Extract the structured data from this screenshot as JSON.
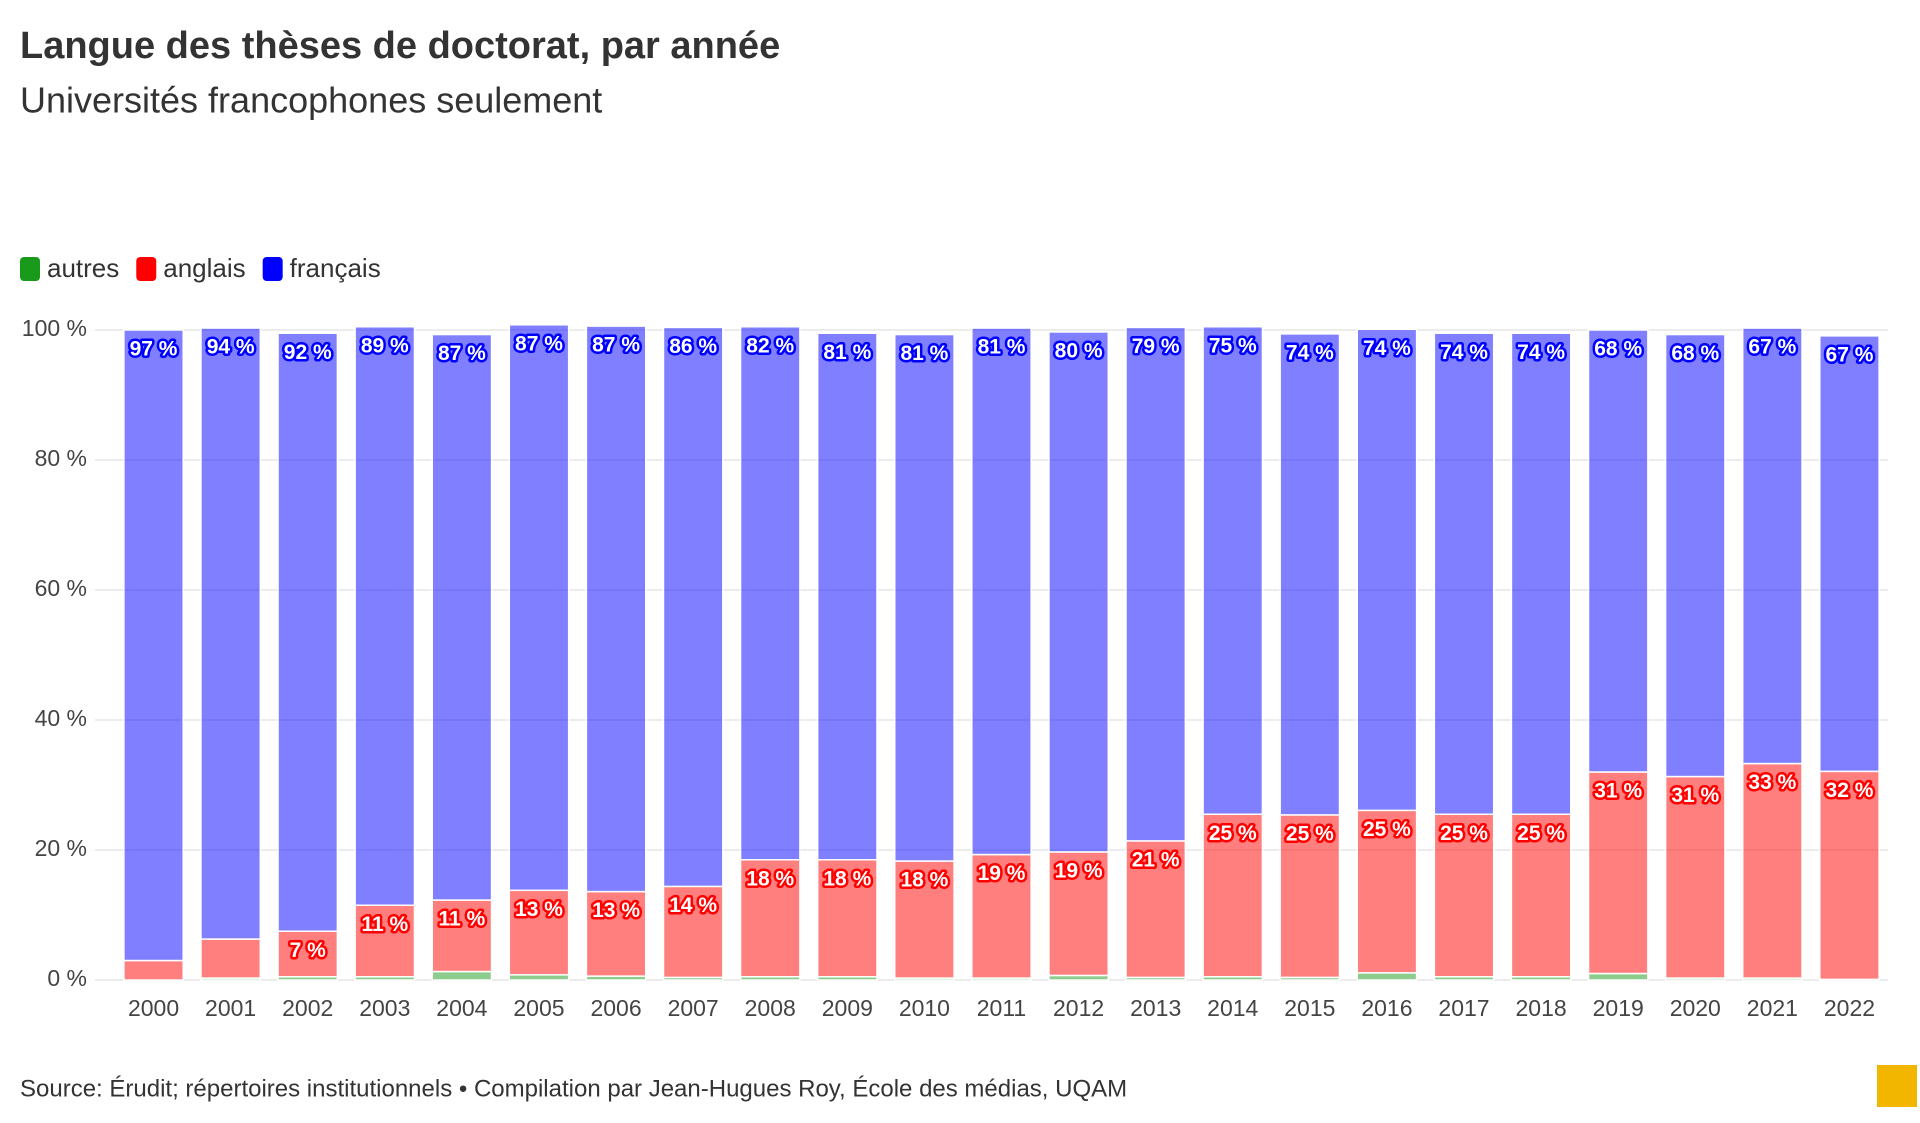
{
  "chart_data": {
    "type": "stacked_bar",
    "title": "Langue des thèses de doctorat, par année",
    "subtitle": "Universités francophones seulement",
    "source": "Source: Érudit; répertoires institutionnels • Compilation par Jean-Hugues Roy, École des médias, UQAM",
    "categories": [
      "2000",
      "2001",
      "2002",
      "2003",
      "2004",
      "2005",
      "2006",
      "2007",
      "2008",
      "2009",
      "2010",
      "2011",
      "2012",
      "2013",
      "2014",
      "2015",
      "2016",
      "2017",
      "2018",
      "2019",
      "2020",
      "2021",
      "2022"
    ],
    "series": [
      {
        "name": "autres",
        "color": "#1a9a1a",
        "values": [
          0,
          0.3,
          0.5,
          0.5,
          1.3,
          0.8,
          0.6,
          0.4,
          0.5,
          0.5,
          0.3,
          0.3,
          0.7,
          0.4,
          0.5,
          0.4,
          1.1,
          0.5,
          0.5,
          1,
          0.3,
          0.3,
          0.1
        ]
      },
      {
        "name": "anglais",
        "color": "#ff0000",
        "values": [
          3,
          6,
          7,
          11,
          11,
          13,
          13,
          14,
          18,
          18,
          18,
          19,
          19,
          21,
          25,
          25,
          25,
          25,
          25,
          31,
          31,
          33,
          32
        ],
        "value_labels": [
          null,
          null,
          "7 %",
          "11 %",
          "11 %",
          "13 %",
          "13 %",
          "14 %",
          "18 %",
          "18 %",
          "18 %",
          "19 %",
          "19 %",
          "21 %",
          "25 %",
          "25 %",
          "25 %",
          "25 %",
          "25 %",
          "31 %",
          "31 %",
          "33 %",
          "32 %"
        ]
      },
      {
        "name": "français",
        "color": "#0000ff",
        "values": [
          97,
          94,
          92,
          89,
          87,
          87,
          87,
          86,
          82,
          81,
          81,
          81,
          80,
          79,
          75,
          74,
          74,
          74,
          74,
          68,
          68,
          67,
          67
        ],
        "value_labels": [
          "97 %",
          "94 %",
          "92 %",
          "89 %",
          "87 %",
          "87 %",
          "87 %",
          "86 %",
          "82 %",
          "81 %",
          "81 %",
          "81 %",
          "80 %",
          "79 %",
          "75 %",
          "74 %",
          "74 %",
          "74 %",
          "74 %",
          "68 %",
          "68 %",
          "67 %",
          "67 %"
        ]
      }
    ],
    "ylim": [
      0,
      100
    ],
    "yticks": [
      {
        "value": 0,
        "label": "0 %"
      },
      {
        "value": 20,
        "label": "20 %"
      },
      {
        "value": 40,
        "label": "40 %"
      },
      {
        "value": 60,
        "label": "60 %"
      },
      {
        "value": 80,
        "label": "80 %"
      },
      {
        "value": 100,
        "label": "100 %"
      }
    ],
    "grid": true
  }
}
